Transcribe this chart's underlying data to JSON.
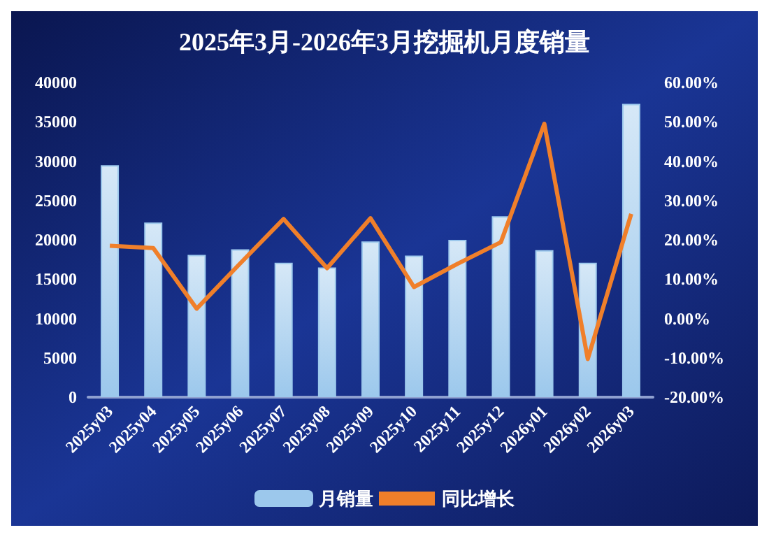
{
  "chart_data": {
    "type": "bar",
    "title": "2025年3月-2026年3月挖掘机月度销量",
    "categories": [
      "2025y03",
      "2025y04",
      "2025y05",
      "2025y06",
      "2025y07",
      "2025y08",
      "2025y09",
      "2025y10",
      "2025y11",
      "2025y12",
      "2026y01",
      "2026y02",
      "2026y03"
    ],
    "series": [
      {
        "name": "月销量",
        "color": "#9cc8ec",
        "values": [
          29500,
          22200,
          18100,
          18800,
          17100,
          16500,
          19800,
          18000,
          20000,
          23000,
          18700,
          17100,
          37300
        ]
      },
      {
        "name": "同比增长",
        "type": "line",
        "axis": "y2",
        "color": "#f07f2a",
        "values": [
          18.5,
          17.9,
          2.5,
          14,
          25.3,
          12.8,
          25.5,
          8,
          13.9,
          19.4,
          49.5,
          -10.3,
          26.6
        ]
      }
    ],
    "ylim": [
      0,
      40000
    ],
    "yticks": [
      0,
      5000,
      10000,
      15000,
      20000,
      25000,
      30000,
      35000,
      40000
    ],
    "y2lim": [
      -20,
      60
    ],
    "y2ticks": [
      {
        "value": -20,
        "label": "-20.00%"
      },
      {
        "value": -10,
        "label": "-10.00%"
      },
      {
        "value": 0,
        "label": "0.00%"
      },
      {
        "value": 10,
        "label": "10.00%"
      },
      {
        "value": 20,
        "label": "20.00%"
      },
      {
        "value": 30,
        "label": "30.00%"
      },
      {
        "value": 40,
        "label": "40.00%"
      },
      {
        "value": 50,
        "label": "50.00%"
      },
      {
        "value": 60,
        "label": "60.00%"
      }
    ],
    "grid": false,
    "legend": "bottom",
    "marker": "none",
    "line_style": "solid"
  }
}
